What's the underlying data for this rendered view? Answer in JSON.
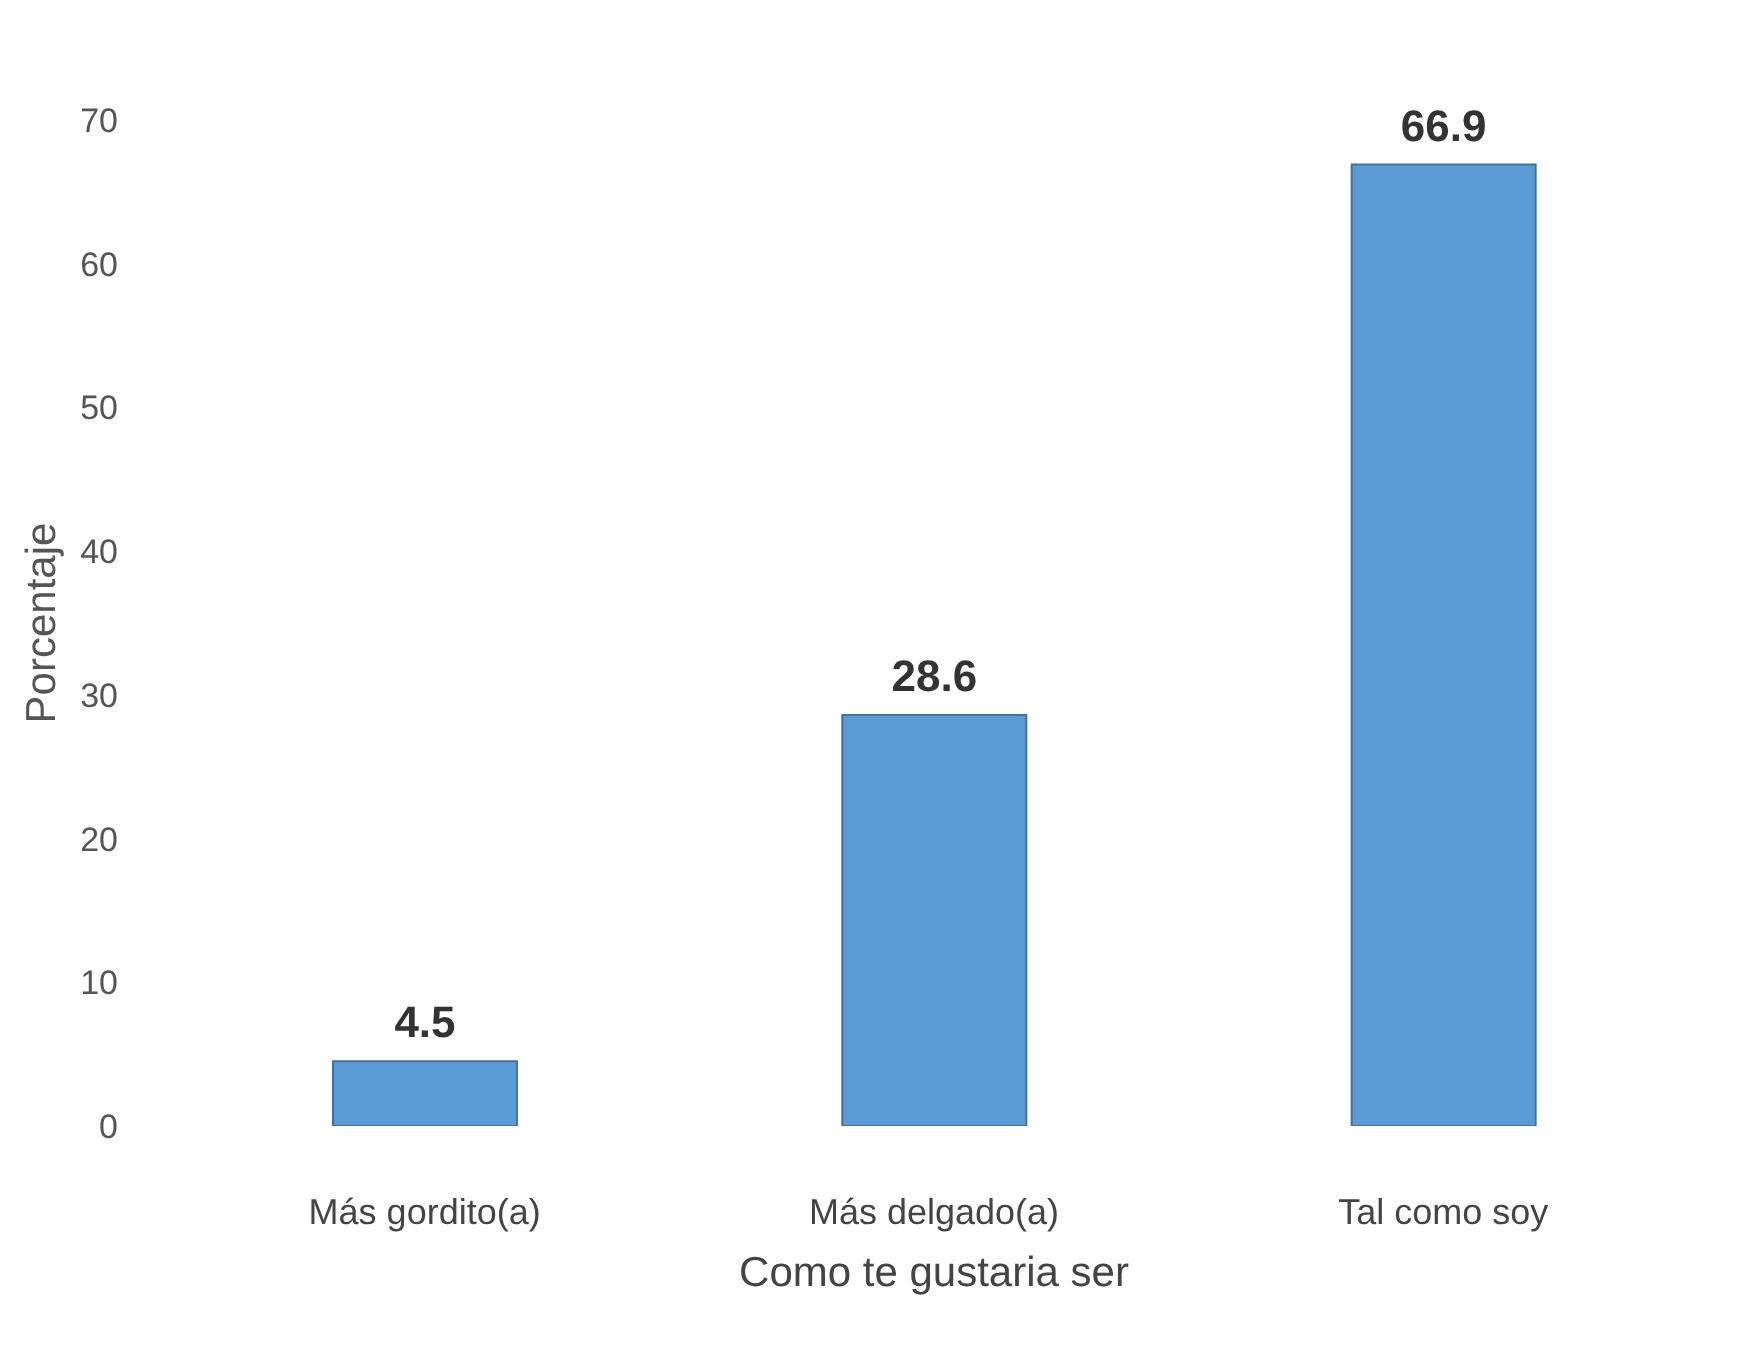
{
  "chart_data": {
    "type": "bar",
    "xlabel": "Como te gustaria ser",
    "ylabel": "Porcentaje",
    "categories": [
      "Más gordito(a)",
      "Más delgado(a)",
      "Tal como soy"
    ],
    "values": [
      4.5,
      28.6,
      66.9
    ],
    "color": "#5b9bd5",
    "ylim": [
      0,
      70
    ],
    "yticks": [
      0,
      10,
      20,
      30,
      40,
      50,
      60,
      70
    ],
    "grid": false,
    "legend": false,
    "data_labels": true
  }
}
